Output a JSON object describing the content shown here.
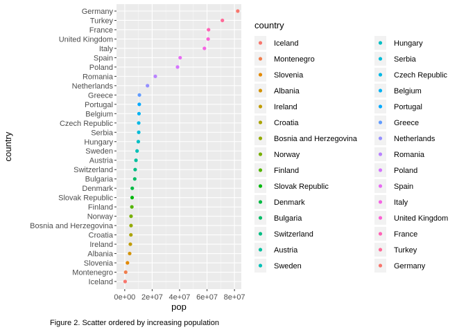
{
  "chart_data": {
    "type": "scatter",
    "xlabel": "pop",
    "ylabel": "country",
    "caption": "Figure 2. Scatter ordered by increasing population",
    "xlim": [
      -6000000,
      85000000
    ],
    "xticks": [
      {
        "value": 0,
        "label": "0e+00"
      },
      {
        "value": 20000000,
        "label": "2e+07"
      },
      {
        "value": 40000000,
        "label": "4e+07"
      },
      {
        "value": 60000000,
        "label": "6e+07"
      },
      {
        "value": 80000000,
        "label": "8e+07"
      }
    ],
    "grid": true,
    "legend": {
      "title": "country",
      "position": "right",
      "columns": 2
    },
    "points": [
      {
        "country": "Iceland",
        "pop": 300000,
        "color": "#f8766d"
      },
      {
        "country": "Montenegro",
        "pop": 700000,
        "color": "#f07e4d"
      },
      {
        "country": "Slovenia",
        "pop": 2000000,
        "color": "#e38900"
      },
      {
        "country": "Albania",
        "pop": 3600000,
        "color": "#d39200"
      },
      {
        "country": "Ireland",
        "pop": 4100000,
        "color": "#c09b00"
      },
      {
        "country": "Croatia",
        "pop": 4500000,
        "color": "#aba300"
      },
      {
        "country": "Bosnia and Herzegovina",
        "pop": 4600000,
        "color": "#93aa00"
      },
      {
        "country": "Norway",
        "pop": 4600000,
        "color": "#77af00"
      },
      {
        "country": "Finland",
        "pop": 5200000,
        "color": "#53b400"
      },
      {
        "country": "Slovak Republic",
        "pop": 5400000,
        "color": "#00b70c"
      },
      {
        "country": "Denmark",
        "pop": 5500000,
        "color": "#00ba42"
      },
      {
        "country": "Bulgaria",
        "pop": 7300000,
        "color": "#00bc66"
      },
      {
        "country": "Switzerland",
        "pop": 7600000,
        "color": "#00be84"
      },
      {
        "country": "Austria",
        "pop": 8200000,
        "color": "#00bf9e"
      },
      {
        "country": "Sweden",
        "pop": 9000000,
        "color": "#00c0b6"
      },
      {
        "country": "Hungary",
        "pop": 9900000,
        "color": "#00bfc4"
      },
      {
        "country": "Serbia",
        "pop": 10200000,
        "color": "#00bcd8"
      },
      {
        "country": "Czech Republic",
        "pop": 10200000,
        "color": "#00b8e5"
      },
      {
        "country": "Belgium",
        "pop": 10400000,
        "color": "#00b2f3"
      },
      {
        "country": "Portugal",
        "pop": 10600000,
        "color": "#00a9ff"
      },
      {
        "country": "Greece",
        "pop": 10700000,
        "color": "#619cff"
      },
      {
        "country": "Netherlands",
        "pop": 16600000,
        "color": "#9590ff"
      },
      {
        "country": "Romania",
        "pop": 22300000,
        "color": "#b983ff"
      },
      {
        "country": "Poland",
        "pop": 38500000,
        "color": "#d575fe"
      },
      {
        "country": "Spain",
        "pop": 40400000,
        "color": "#e76bf3"
      },
      {
        "country": "Italy",
        "pop": 58100000,
        "color": "#f564e3"
      },
      {
        "country": "United Kingdom",
        "pop": 60800000,
        "color": "#fc61d5"
      },
      {
        "country": "France",
        "pop": 61100000,
        "color": "#ff63b6"
      },
      {
        "country": "Turkey",
        "pop": 71200000,
        "color": "#ff6a98"
      },
      {
        "country": "Germany",
        "pop": 82400000,
        "color": "#f8766d"
      }
    ]
  }
}
